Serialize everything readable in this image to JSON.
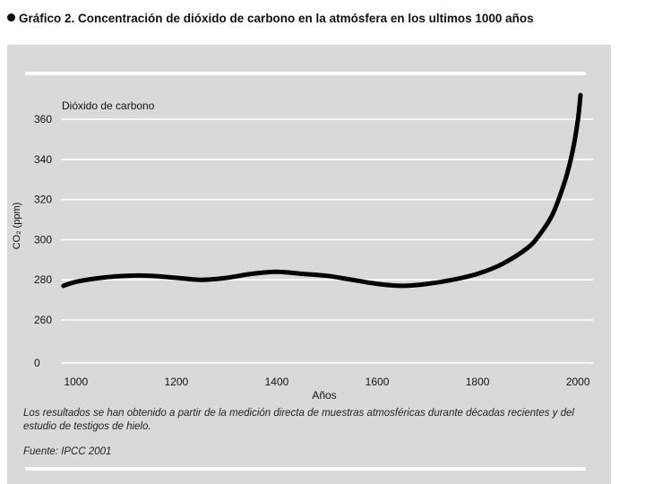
{
  "heading": "Gráfico 2. Concentración de dióxido de carbono en la atmósfera en los ultimos 1000 años",
  "note": "Los resultados se han obtenido a partir de la medición directa de muestras atmosféricas durante décadas recientes y del estudio de testigos de hielo.",
  "source": "Fuente: IPCC 2001",
  "chart_data": {
    "type": "line",
    "title": "",
    "series_label": "Dióxido de carbono",
    "xlabel": "Años",
    "ylabel": "CO₂ (ppm)",
    "xlim": [
      970,
      2030
    ],
    "x_ticks": [
      1000,
      1200,
      1400,
      1600,
      1800,
      2000
    ],
    "y_ticks": [
      0,
      260,
      280,
      300,
      320,
      340,
      360
    ],
    "axis_break": "y between 0 and 260",
    "grid": "horizontal",
    "colors": {
      "line": "#000000",
      "grid": "#ffffff",
      "background": "#d9d9d9"
    },
    "series": [
      {
        "x": [
          975,
          1000,
          1050,
          1100,
          1150,
          1200,
          1250,
          1300,
          1350,
          1400,
          1450,
          1500,
          1550,
          1600,
          1650,
          1700,
          1750,
          1800,
          1850,
          1900,
          1925,
          1950,
          1975,
          1990,
          2000,
          2005
        ],
        "values": [
          277,
          279,
          281,
          282,
          282,
          281,
          280,
          281,
          283,
          284,
          283,
          282,
          280,
          278,
          277,
          278,
          280,
          283,
          288,
          296,
          303,
          313,
          330,
          345,
          360,
          372
        ]
      }
    ]
  }
}
